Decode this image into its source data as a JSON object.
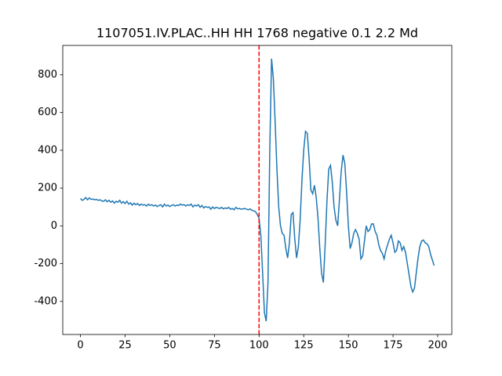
{
  "chart_data": {
    "type": "line",
    "title": "1107051.IV.PLAC..HH HH 1768 negative 0.1 2.2 Md",
    "x": [
      0,
      1,
      2,
      3,
      4,
      5,
      6,
      7,
      8,
      9,
      10,
      11,
      12,
      13,
      14,
      15,
      16,
      17,
      18,
      19,
      20,
      21,
      22,
      23,
      24,
      25,
      26,
      27,
      28,
      29,
      30,
      31,
      32,
      33,
      34,
      35,
      36,
      37,
      38,
      39,
      40,
      41,
      42,
      43,
      44,
      45,
      46,
      47,
      48,
      49,
      50,
      51,
      52,
      53,
      54,
      55,
      56,
      57,
      58,
      59,
      60,
      61,
      62,
      63,
      64,
      65,
      66,
      67,
      68,
      69,
      70,
      71,
      72,
      73,
      74,
      75,
      76,
      77,
      78,
      79,
      80,
      81,
      82,
      83,
      84,
      85,
      86,
      87,
      88,
      89,
      90,
      91,
      92,
      93,
      94,
      95,
      96,
      97,
      98,
      99,
      100,
      101,
      102,
      103,
      104,
      105,
      106,
      107,
      108,
      109,
      110,
      111,
      112,
      113,
      114,
      115,
      116,
      117,
      118,
      119,
      120,
      121,
      122,
      123,
      124,
      125,
      126,
      127,
      128,
      129,
      130,
      131,
      132,
      133,
      134,
      135,
      136,
      137,
      138,
      139,
      140,
      141,
      142,
      143,
      144,
      145,
      146,
      147,
      148,
      149,
      150,
      151,
      152,
      153,
      154,
      155,
      156,
      157,
      158,
      159,
      160,
      161,
      162,
      163,
      164,
      165,
      166,
      167,
      168,
      169,
      170,
      171,
      172,
      173,
      174,
      175,
      176,
      177,
      178,
      179,
      180,
      181,
      182,
      183,
      184,
      185,
      186,
      187,
      188,
      189,
      190,
      191,
      192,
      193,
      194,
      195,
      196,
      197,
      198
    ],
    "series": [
      {
        "color": "#1f77b4",
        "values": [
          145,
          135,
          140,
          150,
          138,
          148,
          140,
          142,
          138,
          140,
          135,
          138,
          132,
          130,
          138,
          128,
          135,
          125,
          132,
          120,
          130,
          125,
          135,
          120,
          128,
          118,
          130,
          115,
          122,
          110,
          120,
          112,
          118,
          108,
          115,
          110,
          112,
          105,
          115,
          108,
          112,
          105,
          110,
          102,
          108,
          112,
          100,
          115,
          105,
          110,
          102,
          108,
          112,
          105,
          110,
          108,
          115,
          110,
          112,
          105,
          112,
          108,
          115,
          100,
          110,
          105,
          112,
          98,
          108,
          95,
          102,
          98,
          100,
          88,
          100,
          92,
          98,
          95,
          92,
          98,
          90,
          95,
          92,
          98,
          88,
          92,
          85,
          98,
          90,
          92,
          88,
          90,
          92,
          88,
          85,
          90,
          82,
          80,
          75,
          60,
          40,
          -50,
          -250,
          -460,
          -505,
          -300,
          400,
          885,
          780,
          550,
          300,
          100,
          0,
          -40,
          -50,
          -120,
          -170,
          -90,
          60,
          70,
          -70,
          -170,
          -110,
          30,
          240,
          400,
          500,
          490,
          360,
          190,
          170,
          215,
          150,
          40,
          -120,
          -250,
          -300,
          -100,
          130,
          300,
          320,
          230,
          100,
          30,
          0,
          140,
          290,
          375,
          330,
          180,
          0,
          -120,
          -90,
          -40,
          -20,
          -40,
          -70,
          -175,
          -160,
          -80,
          0,
          -30,
          -20,
          10,
          10,
          -30,
          -50,
          -100,
          -130,
          -145,
          -175,
          -130,
          -100,
          -70,
          -50,
          -90,
          -140,
          -130,
          -80,
          -90,
          -130,
          -110,
          -140,
          -200,
          -260,
          -320,
          -350,
          -330,
          -250,
          -170,
          -110,
          -80,
          -75,
          -90,
          -95,
          -110,
          -150,
          -180,
          -210
        ]
      }
    ],
    "vline": {
      "x": 100,
      "color": "#ff0000"
    },
    "xlim": [
      -9.9,
      207.9
    ],
    "xticks": [
      0,
      25,
      50,
      75,
      100,
      125,
      150,
      175,
      200
    ],
    "ylim": [
      -575,
      955
    ],
    "yticks": [
      -400,
      -200,
      0,
      200,
      400,
      600,
      800
    ]
  }
}
